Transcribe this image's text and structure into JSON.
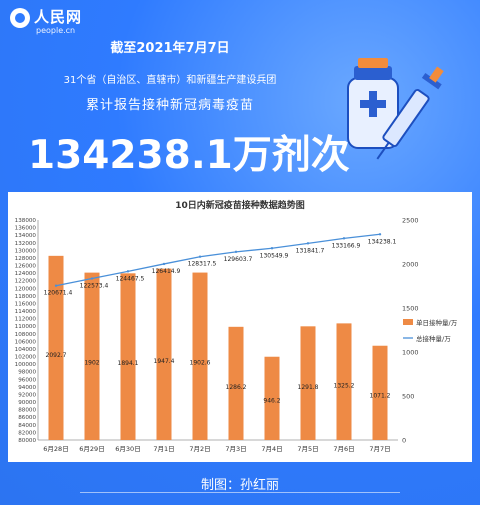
{
  "header": {
    "logo_text": "人民网",
    "logo_url": "people.cn",
    "line1": "截至2021年7月7日",
    "line2": "31个省（自治区、直辖市）和新疆生产建设兵团",
    "line3": "累计报告接种新冠病毒疫苗",
    "big_number": "134238.1万剂次"
  },
  "footer": {
    "credit": "制图：孙红丽"
  },
  "colors": {
    "background": "#2f7bff",
    "bar": "#ee8a45",
    "line": "#4a90d9"
  },
  "chart_data": {
    "type": "bar",
    "title": "10日内新冠疫苗接种数据趋势图",
    "categories": [
      "6月28日",
      "6月29日",
      "6月30日",
      "7月1日",
      "7月2日",
      "7月3日",
      "7月4日",
      "7月5日",
      "7月6日",
      "7月7日"
    ],
    "series": [
      {
        "name": "单日接种量/万",
        "type": "bar",
        "axis": "right",
        "values": [
          2092.7,
          1902,
          1894.1,
          1947.4,
          1902.6,
          1286.2,
          946.2,
          1291.8,
          1325.2,
          1071.2
        ],
        "labels": [
          "2092.7",
          "1902",
          "1894.1",
          "1947.4",
          "1902.6",
          "1286.2",
          "946.2",
          "1291.8",
          "1325.2",
          "1071.2"
        ]
      },
      {
        "name": "总接种量/万",
        "type": "line",
        "axis": "left",
        "values": [
          120671.4,
          122573.4,
          124467.5,
          126414.9,
          128317.5,
          129603.7,
          130549.9,
          131841.7,
          133166.9,
          134238.1
        ],
        "labels": [
          "120671.4",
          "122573.4",
          "124467.5",
          "126414.9",
          "128317.5",
          "129603.7",
          "130549.9",
          "131841.7",
          "133166.9",
          "134238.1"
        ]
      }
    ],
    "y_left": {
      "min": 80000,
      "max": 138000,
      "ticks": [
        "80000",
        "82000",
        "84000",
        "86000",
        "88000",
        "90000",
        "92000",
        "94000",
        "96000",
        "98000",
        "100000",
        "102000",
        "104000",
        "106000",
        "108000",
        "110000",
        "112000",
        "114000",
        "116000",
        "118000",
        "120000",
        "122000",
        "124000",
        "126000",
        "128000",
        "130000",
        "132000",
        "134000",
        "136000",
        "138000"
      ]
    },
    "y_right": {
      "min": 0,
      "max": 2500,
      "ticks": [
        "0",
        "500",
        "1000",
        "1500",
        "2000",
        "2500"
      ]
    },
    "legend_position": "right",
    "grid": false
  }
}
